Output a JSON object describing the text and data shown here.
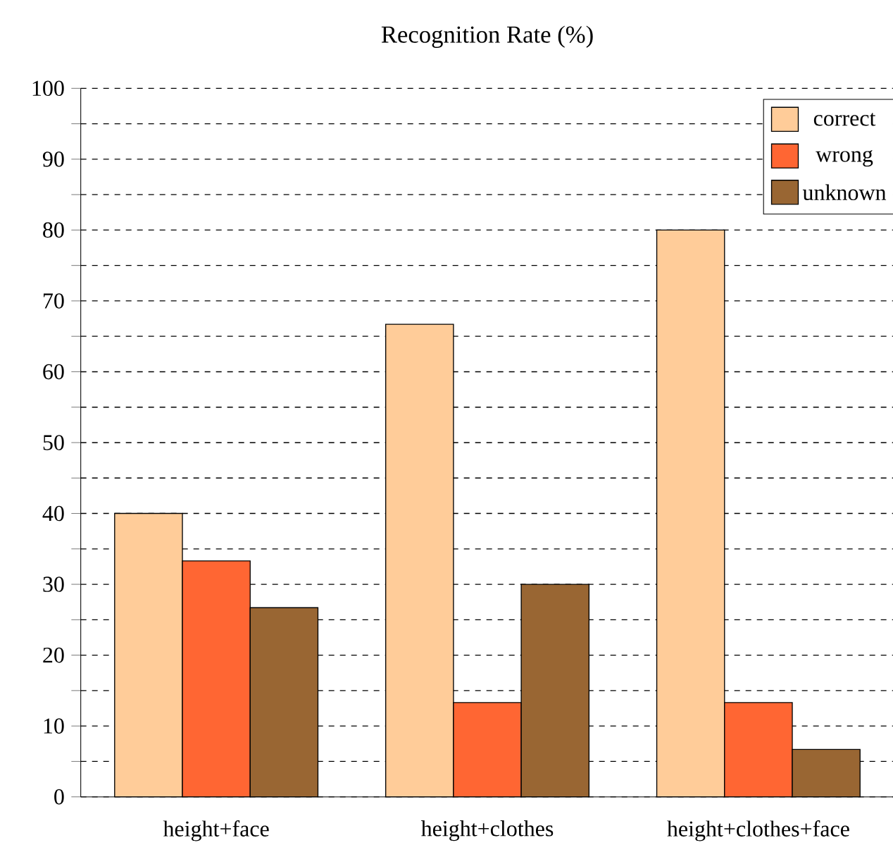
{
  "chart_data": {
    "type": "bar",
    "title": "Recognition Rate (%)",
    "categories": [
      "height+face",
      "height+clothes",
      "height+clothes+face"
    ],
    "series": [
      {
        "name": "correct",
        "color": "#ffcc99",
        "values": [
          40,
          66.7,
          80
        ]
      },
      {
        "name": "wrong",
        "color": "#ff6633",
        "values": [
          33.3,
          13.3,
          13.3
        ]
      },
      {
        "name": "unknown",
        "color": "#996633",
        "values": [
          26.7,
          30,
          6.7
        ]
      }
    ],
    "ylim": [
      0,
      100
    ],
    "yticks": [
      0,
      {
        "value": 5,
        "label": null
      },
      10,
      {
        "value": 15,
        "label": null
      },
      20,
      {
        "value": 25,
        "label": null
      },
      30,
      {
        "value": 35,
        "label": null
      },
      40,
      {
        "value": 45,
        "label": null
      },
      50,
      {
        "value": 55,
        "label": null
      },
      60,
      {
        "value": 65,
        "label": null
      },
      70,
      {
        "value": 75,
        "label": null
      },
      80,
      {
        "value": 85,
        "label": null
      },
      90,
      {
        "value": 95,
        "label": null
      },
      100
    ],
    "grid": "y",
    "legend": "top right"
  }
}
